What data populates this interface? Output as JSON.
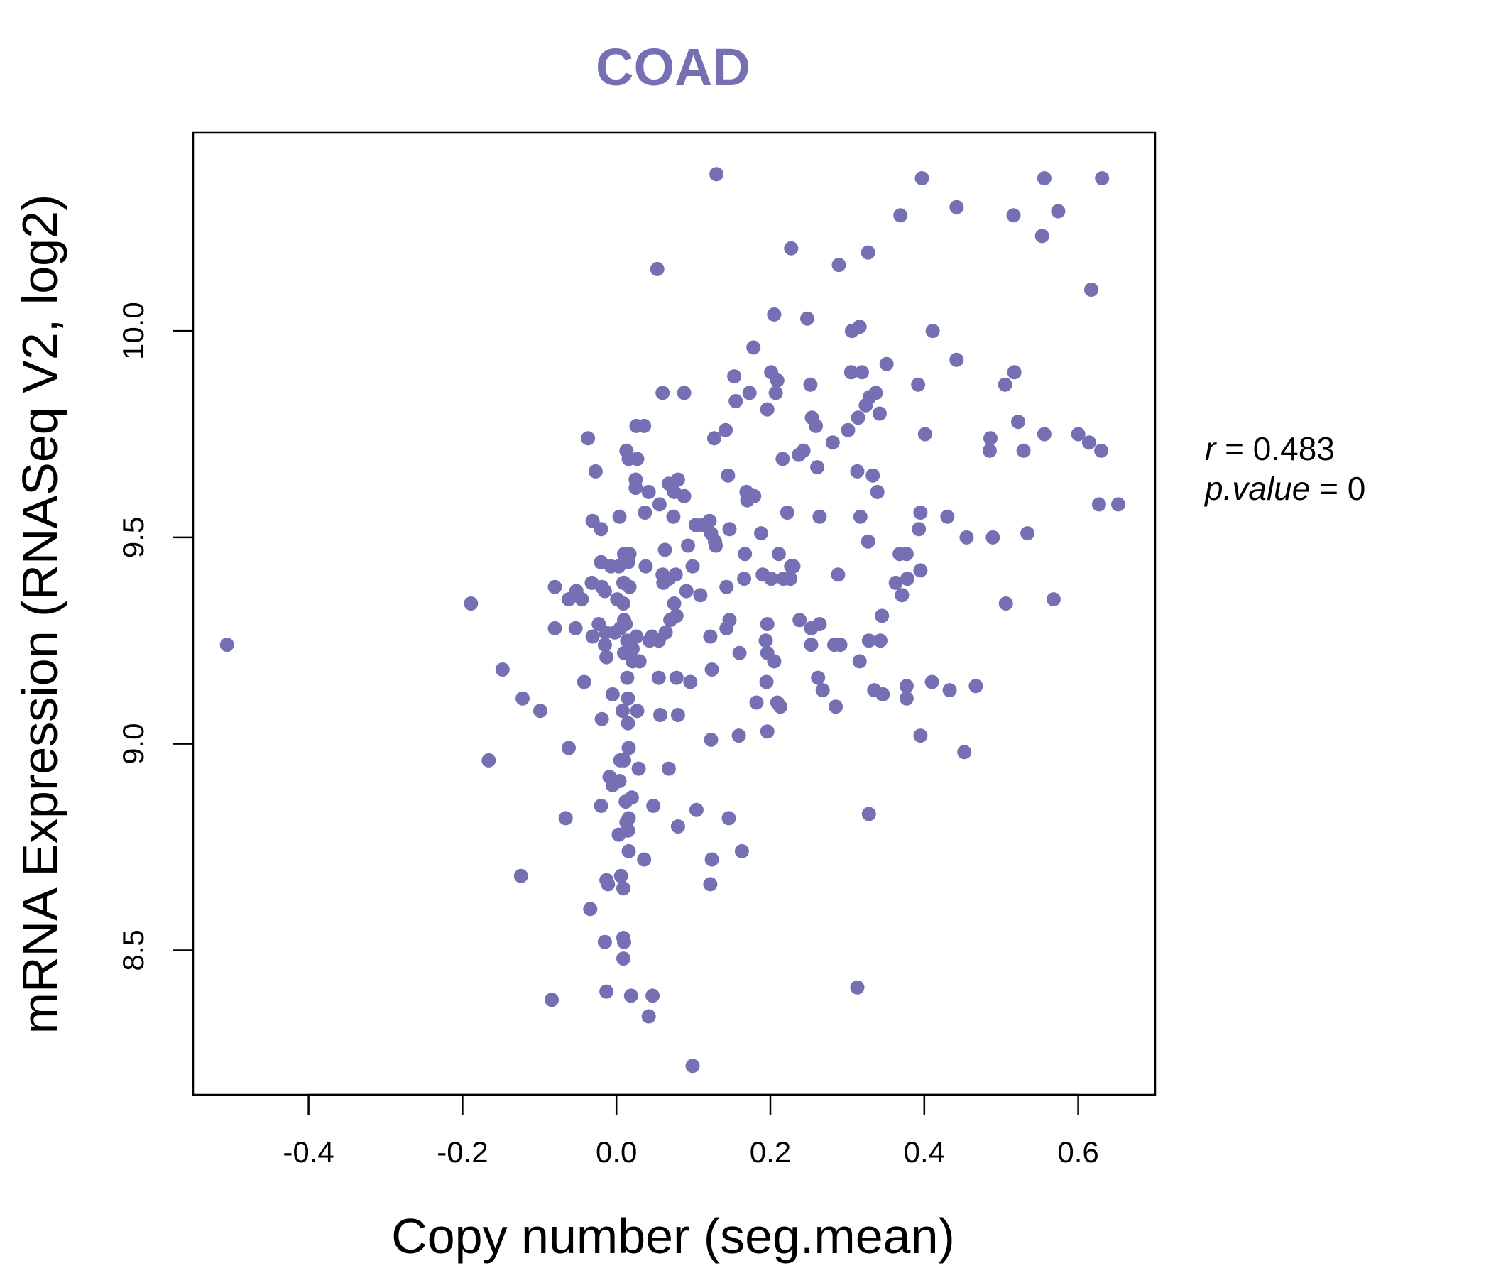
{
  "chart_data": {
    "type": "scatter",
    "title": "COAD",
    "xlabel": "Copy number (seg.mean)",
    "ylabel": "mRNA Expression (RNASeq V2, log2)",
    "xlim": [
      -0.55,
      0.7
    ],
    "ylim": [
      8.15,
      10.48
    ],
    "x_ticks": [
      -0.4,
      -0.2,
      0.0,
      0.2,
      0.4,
      0.6
    ],
    "x_tick_labels": [
      "-0.4",
      "-0.2",
      "0.0",
      "0.2",
      "0.4",
      "0.6"
    ],
    "y_ticks": [
      8.5,
      9.0,
      9.5,
      10.0
    ],
    "y_tick_labels": [
      "8.5",
      "9.0",
      "9.5",
      "10.0"
    ],
    "point_color": "#7570b3",
    "grid": false,
    "legend": "none",
    "annotation": {
      "r_label": "r",
      "r_value": "0.483",
      "p_label": "p.value",
      "p_value": "0"
    },
    "points": [
      [
        0.13,
        10.38
      ],
      [
        0.397,
        10.37
      ],
      [
        0.556,
        10.37
      ],
      [
        0.631,
        10.37
      ],
      [
        0.442,
        10.3
      ],
      [
        0.574,
        10.29
      ],
      [
        0.369,
        10.28
      ],
      [
        0.516,
        10.28
      ],
      [
        0.553,
        10.23
      ],
      [
        0.227,
        10.2
      ],
      [
        0.327,
        10.19
      ],
      [
        0.289,
        10.16
      ],
      [
        0.053,
        10.15
      ],
      [
        0.617,
        10.1
      ],
      [
        0.205,
        10.04
      ],
      [
        0.248,
        10.03
      ],
      [
        0.316,
        10.01
      ],
      [
        0.306,
        10.0
      ],
      [
        0.411,
        10.0
      ],
      [
        0.178,
        9.96
      ],
      [
        0.442,
        9.93
      ],
      [
        0.351,
        9.92
      ],
      [
        0.201,
        9.9
      ],
      [
        0.305,
        9.9
      ],
      [
        0.319,
        9.9
      ],
      [
        0.517,
        9.9
      ],
      [
        0.153,
        9.89
      ],
      [
        0.209,
        9.88
      ],
      [
        0.392,
        9.87
      ],
      [
        0.252,
        9.87
      ],
      [
        0.505,
        9.87
      ],
      [
        0.173,
        9.85
      ],
      [
        0.088,
        9.85
      ],
      [
        0.06,
        9.85
      ],
      [
        0.337,
        9.85
      ],
      [
        0.207,
        9.85
      ],
      [
        0.329,
        9.84
      ],
      [
        0.155,
        9.83
      ],
      [
        0.324,
        9.82
      ],
      [
        0.196,
        9.81
      ],
      [
        0.342,
        9.8
      ],
      [
        0.314,
        9.79
      ],
      [
        0.254,
        9.79
      ],
      [
        0.522,
        9.78
      ],
      [
        0.259,
        9.77
      ],
      [
        0.036,
        9.77
      ],
      [
        0.026,
        9.77
      ],
      [
        0.301,
        9.76
      ],
      [
        0.142,
        9.76
      ],
      [
        0.401,
        9.75
      ],
      [
        0.6,
        9.75
      ],
      [
        0.556,
        9.75
      ],
      [
        0.486,
        9.74
      ],
      [
        0.614,
        9.73
      ],
      [
        -0.037,
        9.74
      ],
      [
        0.127,
        9.74
      ],
      [
        0.281,
        9.73
      ],
      [
        0.63,
        9.71
      ],
      [
        0.529,
        9.71
      ],
      [
        0.485,
        9.71
      ],
      [
        0.243,
        9.71
      ],
      [
        0.237,
        9.7
      ],
      [
        0.013,
        9.71
      ],
      [
        0.016,
        9.69
      ],
      [
        0.027,
        9.69
      ],
      [
        0.216,
        9.69
      ],
      [
        0.261,
        9.67
      ],
      [
        0.313,
        9.66
      ],
      [
        0.333,
        9.65
      ],
      [
        -0.027,
        9.66
      ],
      [
        0.145,
        9.65
      ],
      [
        0.08,
        9.64
      ],
      [
        0.025,
        9.64
      ],
      [
        0.068,
        9.63
      ],
      [
        0.025,
        9.62
      ],
      [
        0.042,
        9.61
      ],
      [
        0.169,
        9.61
      ],
      [
        0.339,
        9.61
      ],
      [
        0.075,
        9.61
      ],
      [
        0.17,
        9.59
      ],
      [
        0.179,
        9.6
      ],
      [
        0.088,
        9.6
      ],
      [
        0.627,
        9.58
      ],
      [
        0.652,
        9.58
      ],
      [
        0.056,
        9.58
      ],
      [
        0.395,
        9.56
      ],
      [
        0.222,
        9.56
      ],
      [
        0.037,
        9.56
      ],
      [
        0.43,
        9.55
      ],
      [
        0.074,
        9.55
      ],
      [
        0.317,
        9.55
      ],
      [
        0.264,
        9.55
      ],
      [
        0.004,
        9.55
      ],
      [
        0.121,
        9.54
      ],
      [
        -0.031,
        9.54
      ],
      [
        0.103,
        9.53
      ],
      [
        0.112,
        9.53
      ],
      [
        -0.02,
        9.52
      ],
      [
        0.393,
        9.52
      ],
      [
        0.147,
        9.52
      ],
      [
        0.188,
        9.51
      ],
      [
        0.534,
        9.51
      ],
      [
        0.123,
        9.51
      ],
      [
        0.455,
        9.5
      ],
      [
        0.489,
        9.5
      ],
      [
        0.128,
        9.49
      ],
      [
        0.327,
        9.49
      ],
      [
        0.093,
        9.48
      ],
      [
        0.129,
        9.48
      ],
      [
        0.063,
        9.47
      ],
      [
        0.167,
        9.46
      ],
      [
        0.017,
        9.46
      ],
      [
        0.01,
        9.46
      ],
      [
        0.211,
        9.46
      ],
      [
        0.368,
        9.46
      ],
      [
        0.377,
        9.46
      ],
      [
        -0.02,
        9.44
      ],
      [
        0.015,
        9.44
      ],
      [
        0.01,
        9.44
      ],
      [
        0.003,
        9.43
      ],
      [
        0.038,
        9.43
      ],
      [
        0.227,
        9.43
      ],
      [
        0.099,
        9.43
      ],
      [
        0.23,
        9.43
      ],
      [
        -0.007,
        9.43
      ],
      [
        0.395,
        9.42
      ],
      [
        0.19,
        9.41
      ],
      [
        0.077,
        9.41
      ],
      [
        0.06,
        9.41
      ],
      [
        0.288,
        9.41
      ],
      [
        0.226,
        9.4
      ],
      [
        0.201,
        9.4
      ],
      [
        0.217,
        9.4
      ],
      [
        0.378,
        9.4
      ],
      [
        0.068,
        9.4
      ],
      [
        0.062,
        9.4
      ],
      [
        0.166,
        9.4
      ],
      [
        0.061,
        9.39
      ],
      [
        0.01,
        9.39
      ],
      [
        0.363,
        9.39
      ],
      [
        0.017,
        9.38
      ],
      [
        0.009,
        9.39
      ],
      [
        -0.032,
        9.39
      ],
      [
        -0.019,
        9.38
      ],
      [
        0.143,
        9.38
      ],
      [
        -0.08,
        9.38
      ],
      [
        -0.052,
        9.37
      ],
      [
        -0.015,
        9.37
      ],
      [
        0.091,
        9.37
      ],
      [
        0.109,
        9.36
      ],
      [
        0.371,
        9.36
      ],
      [
        -0.045,
        9.35
      ],
      [
        0.001,
        9.35
      ],
      [
        -0.062,
        9.35
      ],
      [
        0.009,
        9.34
      ],
      [
        0.568,
        9.35
      ],
      [
        0.506,
        9.34
      ],
      [
        -0.189,
        9.34
      ],
      [
        0.075,
        9.34
      ],
      [
        0.345,
        9.31
      ],
      [
        0.078,
        9.31
      ],
      [
        0.147,
        9.3
      ],
      [
        0.238,
        9.3
      ],
      [
        0.01,
        9.3
      ],
      [
        0.07,
        9.3
      ],
      [
        0.196,
        9.29
      ],
      [
        0.264,
        9.29
      ],
      [
        -0.023,
        9.29
      ],
      [
        0.012,
        9.29
      ],
      [
        -0.053,
        9.28
      ],
      [
        0.005,
        9.28
      ],
      [
        0.253,
        9.28
      ],
      [
        0.143,
        9.28
      ],
      [
        -0.08,
        9.28
      ],
      [
        0.064,
        9.27
      ],
      [
        -0.014,
        9.27
      ],
      [
        -0.002,
        9.27
      ],
      [
        -0.031,
        9.26
      ],
      [
        0.046,
        9.26
      ],
      [
        0.026,
        9.26
      ],
      [
        0.122,
        9.26
      ],
      [
        0.014,
        9.25
      ],
      [
        0.328,
        9.25
      ],
      [
        0.343,
        9.25
      ],
      [
        0.055,
        9.25
      ],
      [
        0.043,
        9.25
      ],
      [
        0.194,
        9.25
      ],
      [
        -0.506,
        9.24
      ],
      [
        0.253,
        9.24
      ],
      [
        0.283,
        9.24
      ],
      [
        0.291,
        9.24
      ],
      [
        -0.015,
        9.24
      ],
      [
        0.021,
        9.23
      ],
      [
        0.01,
        9.22
      ],
      [
        0.16,
        9.22
      ],
      [
        0.196,
        9.22
      ],
      [
        -0.013,
        9.21
      ],
      [
        0.316,
        9.2
      ],
      [
        0.205,
        9.2
      ],
      [
        0.03,
        9.2
      ],
      [
        0.021,
        9.2
      ],
      [
        0.124,
        9.18
      ],
      [
        -0.148,
        9.18
      ],
      [
        0.262,
        9.16
      ],
      [
        0.055,
        9.16
      ],
      [
        0.078,
        9.16
      ],
      [
        0.014,
        9.16
      ],
      [
        0.096,
        9.15
      ],
      [
        -0.042,
        9.15
      ],
      [
        0.195,
        9.15
      ],
      [
        0.41,
        9.15
      ],
      [
        0.377,
        9.14
      ],
      [
        0.467,
        9.14
      ],
      [
        0.433,
        9.13
      ],
      [
        0.335,
        9.13
      ],
      [
        0.268,
        9.13
      ],
      [
        0.346,
        9.12
      ],
      [
        -0.005,
        9.12
      ],
      [
        0.015,
        9.11
      ],
      [
        0.377,
        9.11
      ],
      [
        -0.122,
        9.11
      ],
      [
        0.182,
        9.1
      ],
      [
        0.209,
        9.1
      ],
      [
        0.213,
        9.09
      ],
      [
        0.285,
        9.09
      ],
      [
        -0.099,
        9.08
      ],
      [
        0.027,
        9.08
      ],
      [
        0.008,
        9.08
      ],
      [
        0.057,
        9.07
      ],
      [
        0.08,
        9.07
      ],
      [
        -0.019,
        9.06
      ],
      [
        0.015,
        9.05
      ],
      [
        0.196,
        9.03
      ],
      [
        0.159,
        9.02
      ],
      [
        0.395,
        9.02
      ],
      [
        0.123,
        9.01
      ],
      [
        -0.062,
        8.99
      ],
      [
        0.016,
        8.99
      ],
      [
        0.452,
        8.98
      ],
      [
        0.005,
        8.96
      ],
      [
        0.01,
        8.96
      ],
      [
        -0.166,
        8.96
      ],
      [
        0.029,
        8.94
      ],
      [
        0.068,
        8.94
      ],
      [
        -0.009,
        8.92
      ],
      [
        0.004,
        8.91
      ],
      [
        -0.005,
        8.9
      ],
      [
        0.02,
        8.87
      ],
      [
        0.012,
        8.86
      ],
      [
        0.048,
        8.85
      ],
      [
        -0.02,
        8.85
      ],
      [
        0.104,
        8.84
      ],
      [
        0.328,
        8.83
      ],
      [
        0.016,
        8.82
      ],
      [
        -0.066,
        8.82
      ],
      [
        0.146,
        8.82
      ],
      [
        0.013,
        8.81
      ],
      [
        0.08,
        8.8
      ],
      [
        0.015,
        8.79
      ],
      [
        0.003,
        8.78
      ],
      [
        0.163,
        8.74
      ],
      [
        0.016,
        8.74
      ],
      [
        0.036,
        8.72
      ],
      [
        0.124,
        8.72
      ],
      [
        0.006,
        8.68
      ],
      [
        -0.124,
        8.68
      ],
      [
        0.122,
        8.66
      ],
      [
        -0.013,
        8.67
      ],
      [
        -0.011,
        8.66
      ],
      [
        0.009,
        8.65
      ],
      [
        -0.034,
        8.6
      ],
      [
        0.009,
        8.53
      ],
      [
        0.01,
        8.52
      ],
      [
        -0.015,
        8.52
      ],
      [
        0.009,
        8.48
      ],
      [
        0.313,
        8.41
      ],
      [
        -0.013,
        8.4
      ],
      [
        0.019,
        8.39
      ],
      [
        0.047,
        8.39
      ],
      [
        -0.084,
        8.38
      ],
      [
        0.042,
        8.34
      ],
      [
        0.099,
        8.22
      ]
    ]
  }
}
